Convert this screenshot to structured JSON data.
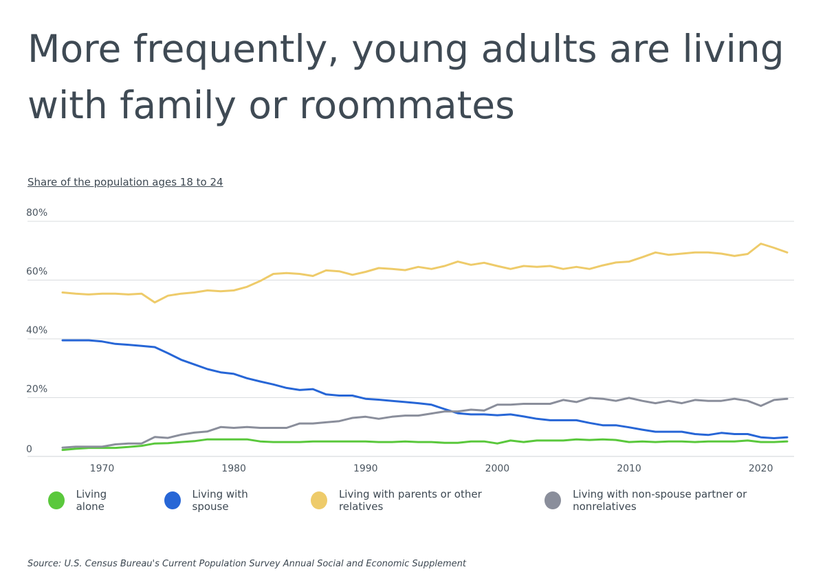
{
  "title": "More frequently, young adults are living with family or roommates",
  "subtitle": "Share of the population ages 18 to 24",
  "source": "Source: U.S. Census Bureau's Current Population Survey Annual Social and Economic Supplement",
  "colors": {
    "living_alone": "#5ac83c",
    "living_with_spouse": "#2766d6",
    "living_with_parents": "#eecb6a",
    "living_with_nonrelatives": "#8a8e9b",
    "grid": "#d9dcdf",
    "tick_text": "#4a5560"
  },
  "chart_data": {
    "type": "line",
    "xlabel": "",
    "ylabel": "",
    "xlim": [
      1967,
      2022
    ],
    "ylim": [
      0,
      80
    ],
    "y_ticks": [
      0,
      20,
      40,
      60,
      80
    ],
    "y_tick_labels": [
      "0",
      "20%",
      "40%",
      "60%",
      "80%"
    ],
    "x_ticks": [
      1970,
      1980,
      1990,
      2000,
      2010,
      2020
    ],
    "x_tick_labels": [
      "1970",
      "1980",
      "1990",
      "2000",
      "2010",
      "2020"
    ],
    "grid": true,
    "legend_position": "bottom",
    "x": [
      1967,
      1968,
      1969,
      1970,
      1971,
      1972,
      1973,
      1974,
      1975,
      1976,
      1977,
      1978,
      1979,
      1980,
      1981,
      1982,
      1983,
      1984,
      1985,
      1986,
      1987,
      1988,
      1989,
      1990,
      1991,
      1992,
      1993,
      1994,
      1995,
      1996,
      1997,
      1998,
      1999,
      2000,
      2001,
      2002,
      2003,
      2004,
      2005,
      2006,
      2007,
      2008,
      2009,
      2010,
      2011,
      2012,
      2013,
      2014,
      2015,
      2016,
      2017,
      2018,
      2019,
      2020,
      2021,
      2022
    ],
    "series": [
      {
        "name": "Living alone",
        "color": "#5ac83c",
        "values": [
          2.2,
          2.6,
          2.9,
          2.9,
          2.9,
          3.2,
          3.6,
          4.4,
          4.5,
          4.9,
          5.2,
          5.8,
          5.8,
          5.8,
          5.8,
          5.1,
          4.9,
          4.9,
          4.9,
          5.1,
          5.1,
          5.1,
          5.1,
          5.1,
          4.9,
          4.9,
          5.1,
          4.9,
          4.9,
          4.6,
          4.6,
          5.1,
          5.1,
          4.4,
          5.4,
          4.9,
          5.4,
          5.4,
          5.4,
          5.8,
          5.6,
          5.8,
          5.6,
          4.9,
          5.1,
          4.9,
          5.1,
          5.1,
          4.9,
          5.1,
          5.1,
          5.1,
          5.4,
          4.9,
          4.9,
          5.1
        ]
      },
      {
        "name": "Living with spouse",
        "color": "#2766d6",
        "values": [
          39.5,
          39.5,
          39.5,
          39.1,
          38.3,
          38.0,
          37.6,
          37.2,
          35.1,
          32.9,
          31.3,
          29.7,
          28.6,
          28.1,
          26.6,
          25.5,
          24.5,
          23.3,
          22.6,
          22.9,
          21.1,
          20.7,
          20.7,
          19.6,
          19.3,
          18.9,
          18.5,
          18.1,
          17.6,
          16.1,
          14.7,
          14.3,
          14.3,
          14.0,
          14.3,
          13.6,
          12.8,
          12.3,
          12.3,
          12.3,
          11.4,
          10.6,
          10.6,
          9.9,
          9.1,
          8.4,
          8.4,
          8.4,
          7.6,
          7.3,
          8.0,
          7.6,
          7.6,
          6.5,
          6.2,
          6.5
        ]
      },
      {
        "name": "Living with parents or other relatives",
        "color": "#eecb6a",
        "values": [
          55.8,
          55.4,
          55.1,
          55.4,
          55.4,
          55.1,
          55.4,
          52.4,
          54.7,
          55.4,
          55.8,
          56.5,
          56.2,
          56.5,
          57.7,
          59.7,
          62.1,
          62.4,
          62.1,
          61.4,
          63.3,
          63.0,
          61.8,
          62.8,
          64.1,
          63.8,
          63.4,
          64.5,
          63.8,
          64.8,
          66.3,
          65.2,
          65.9,
          64.8,
          63.8,
          64.8,
          64.5,
          64.8,
          63.8,
          64.5,
          63.8,
          65.0,
          66.0,
          66.3,
          67.8,
          69.4,
          68.6,
          69.0,
          69.4,
          69.4,
          69.0,
          68.2,
          68.9,
          72.4,
          71.0,
          69.4
        ]
      },
      {
        "name": "Living with non-spouse partner or nonrelatives",
        "color": "#8a8e9b",
        "values": [
          3.0,
          3.3,
          3.3,
          3.3,
          4.1,
          4.4,
          4.4,
          6.6,
          6.3,
          7.4,
          8.1,
          8.5,
          10.0,
          9.7,
          10.0,
          9.7,
          9.7,
          9.7,
          11.2,
          11.2,
          11.6,
          12.0,
          13.1,
          13.5,
          12.8,
          13.5,
          13.9,
          13.9,
          14.6,
          15.3,
          15.3,
          15.9,
          15.6,
          17.6,
          17.6,
          17.9,
          17.9,
          17.9,
          19.2,
          18.5,
          19.9,
          19.6,
          18.9,
          19.9,
          18.9,
          18.1,
          18.9,
          18.1,
          19.2,
          18.9,
          18.9,
          19.6,
          18.9,
          17.2,
          19.2,
          19.6
        ]
      }
    ]
  }
}
